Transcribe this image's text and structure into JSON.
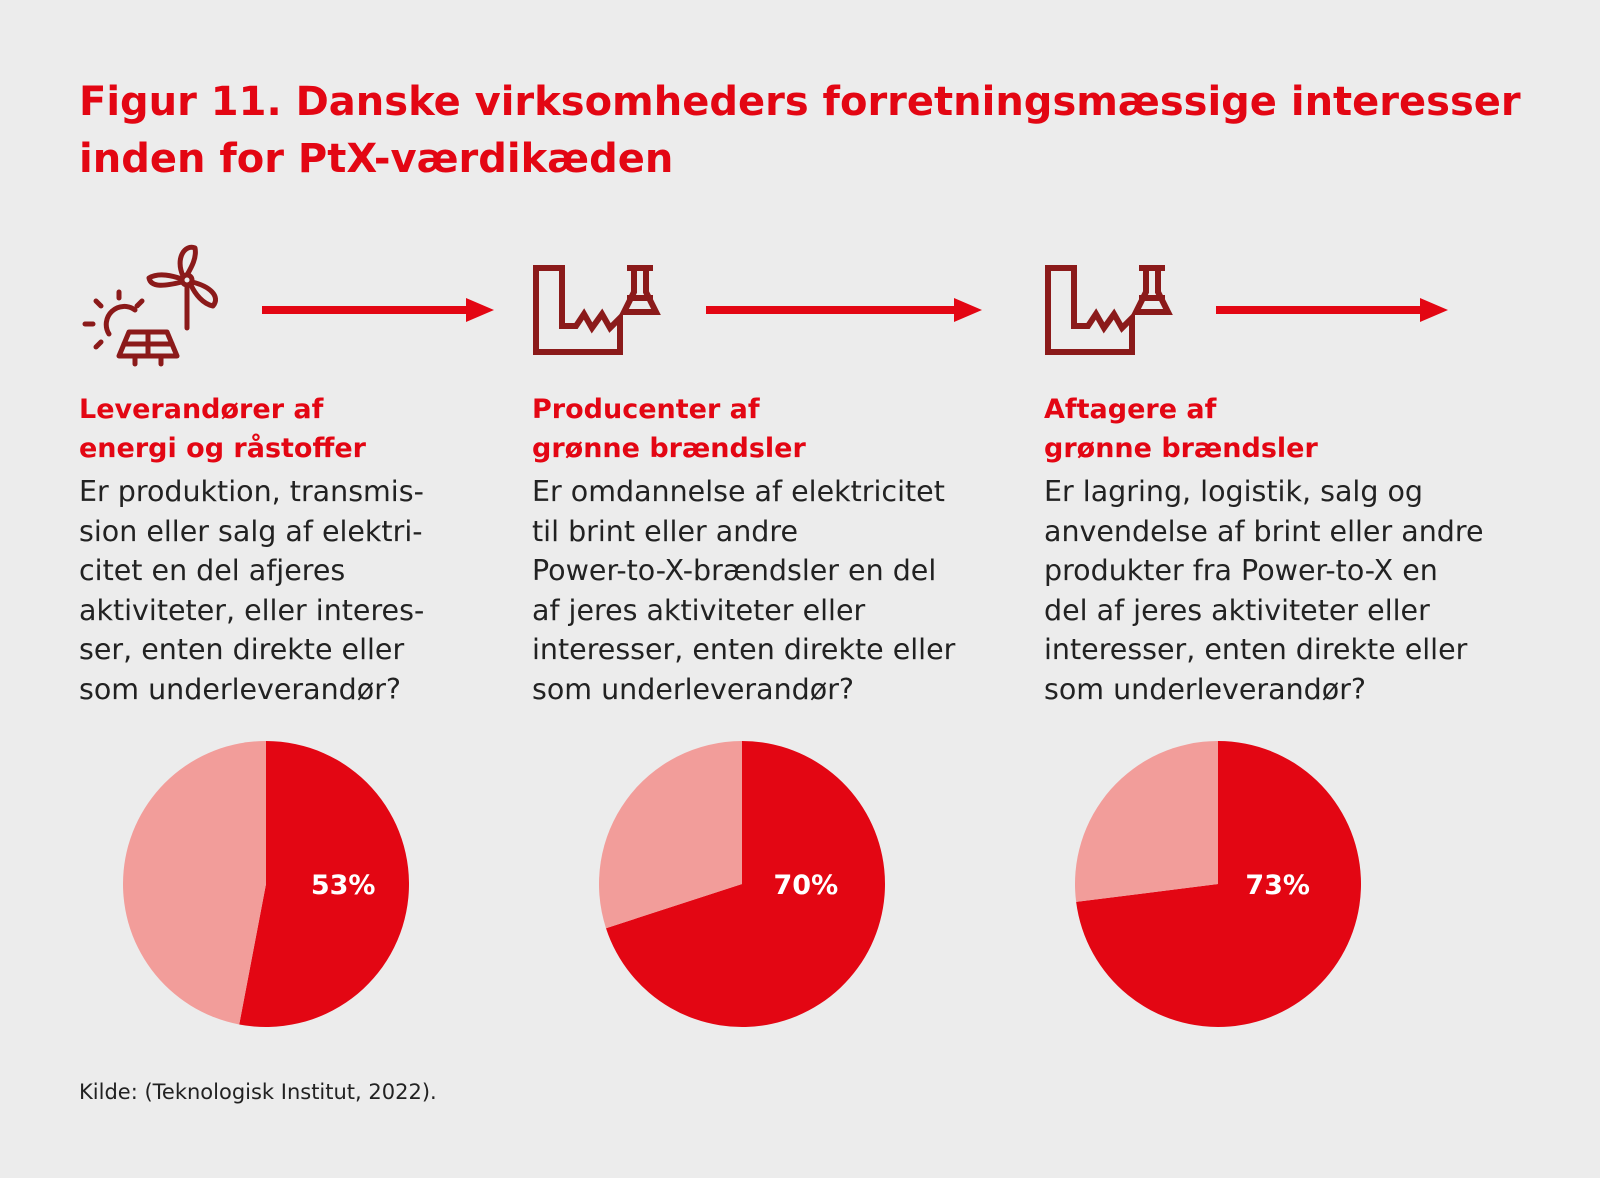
{
  "title": "Figur 11. Danske virksomheders forretningsmæssige interesser inden for PtX-værdikæden",
  "columns": [
    {
      "icon": "renewable-energy-icon",
      "heading": [
        "Leverandører af",
        "energi og råstoffer"
      ],
      "body": [
        "Er produktion, transmis-",
        "sion eller salg af elektri-",
        "citet en del afjeres",
        "aktiviteter, eller interes-",
        "ser, enten direkte eller",
        "som underleverandør?"
      ]
    },
    {
      "icon": "factory-flask-icon",
      "heading": [
        "Producenter af",
        "grønne brændsler"
      ],
      "body": [
        "Er omdannelse af elektricitet",
        "til brint eller andre",
        "Power-to-X-brændsler en del",
        "af jeres aktiviteter eller",
        "interesser, enten direkte eller",
        "som underleverandør?"
      ]
    },
    {
      "icon": "factory-flask-icon",
      "heading": [
        "Aftagere af",
        "grønne brændsler"
      ],
      "body": [
        "Er lagring, logistik, salg og",
        "anvendelse af brint eller andre",
        "produkter fra Power-to-X en",
        "del af jeres aktiviteter eller",
        "interesser, enten direkte eller",
        "som underleverandør?"
      ]
    }
  ],
  "chart_data": [
    {
      "type": "pie",
      "slices": [
        {
          "value": 53,
          "label": "53%",
          "color": "#e30613"
        },
        {
          "value": 47,
          "label": "",
          "color": "#f29d9a"
        }
      ]
    },
    {
      "type": "pie",
      "slices": [
        {
          "value": 70,
          "label": "70%",
          "color": "#e30613"
        },
        {
          "value": 30,
          "label": "",
          "color": "#f29d9a"
        }
      ]
    },
    {
      "type": "pie",
      "slices": [
        {
          "value": 73,
          "label": "73%",
          "color": "#e30613"
        },
        {
          "value": 27,
          "label": "",
          "color": "#f29d9a"
        }
      ]
    }
  ],
  "colors": {
    "accent": "#e30613",
    "accent_light": "#f29d9a",
    "icon": "#8b1a1a"
  },
  "source": "Kilde: (Teknologisk Institut, 2022)."
}
